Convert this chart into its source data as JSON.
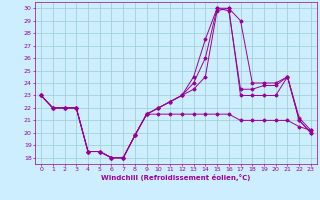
{
  "xlabel": "Windchill (Refroidissement éolien,°C)",
  "xlim": [
    -0.5,
    23.5
  ],
  "ylim": [
    17.5,
    30.5
  ],
  "yticks": [
    18,
    19,
    20,
    21,
    22,
    23,
    24,
    25,
    26,
    27,
    28,
    29,
    30
  ],
  "xticks": [
    0,
    1,
    2,
    3,
    4,
    5,
    6,
    7,
    8,
    9,
    10,
    11,
    12,
    13,
    14,
    15,
    16,
    17,
    18,
    19,
    20,
    21,
    22,
    23
  ],
  "bg_color": "#cceeff",
  "grid_color": "#99cccc",
  "line_color": "#990099",
  "curves": [
    [
      23,
      22,
      22,
      22,
      18.5,
      18.5,
      18.0,
      18.0,
      19.8,
      21.5,
      21.5,
      21.5,
      21.5,
      21.5,
      21.5,
      21.5,
      21.5,
      21.0,
      21.0,
      21.0,
      21.0,
      21.0,
      20.5,
      20.2
    ],
    [
      23,
      22,
      22,
      22,
      18.5,
      18.5,
      18.0,
      18.0,
      19.8,
      21.5,
      22.0,
      22.5,
      23.0,
      23.5,
      24.5,
      29.8,
      30.0,
      29.0,
      24.0,
      24.0,
      24.0,
      24.5,
      21.2,
      20.2
    ],
    [
      23,
      22,
      22,
      22,
      18.5,
      18.5,
      18.0,
      18.0,
      19.8,
      21.5,
      22.0,
      22.5,
      23.0,
      24.0,
      26.0,
      30.0,
      29.8,
      23.5,
      23.5,
      23.8,
      23.8,
      24.5,
      21.0,
      20.0
    ],
    [
      23,
      22,
      22,
      22,
      18.5,
      18.5,
      18.0,
      18.0,
      19.8,
      21.5,
      22.0,
      22.5,
      23.0,
      24.5,
      27.5,
      30.0,
      30.0,
      23.0,
      23.0,
      23.0,
      23.0,
      24.5,
      21.0,
      20.0
    ]
  ],
  "x": [
    0,
    1,
    2,
    3,
    4,
    5,
    6,
    7,
    8,
    9,
    10,
    11,
    12,
    13,
    14,
    15,
    16,
    17,
    18,
    19,
    20,
    21,
    22,
    23
  ]
}
